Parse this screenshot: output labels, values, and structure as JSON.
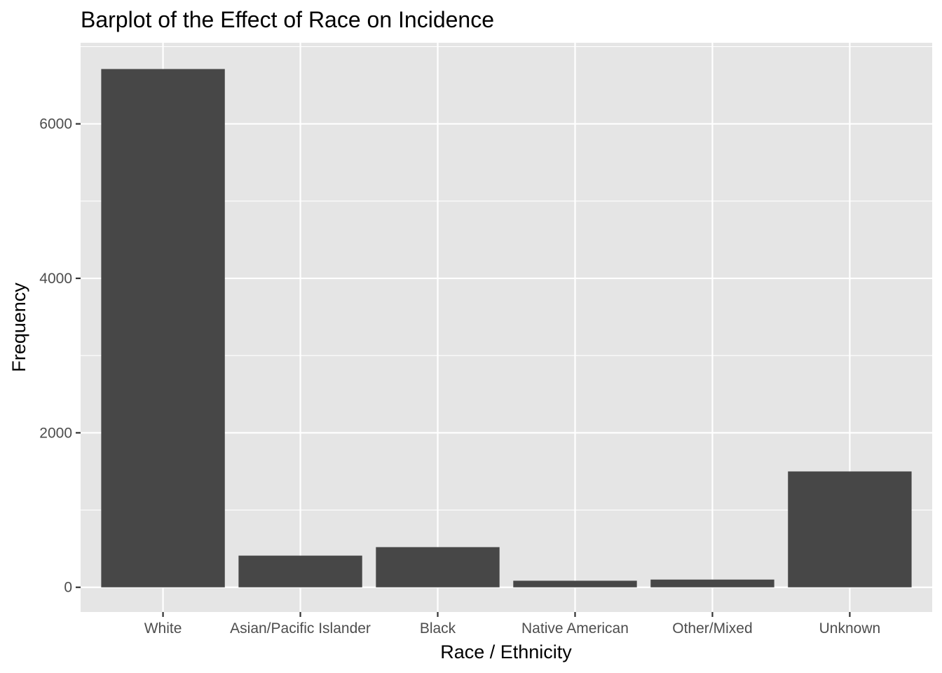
{
  "chart_data": {
    "type": "bar",
    "title": "Barplot of the Effect of Race on Incidence",
    "xlabel": "Race / Ethnicity",
    "ylabel": "Frequency",
    "categories": [
      "White",
      "Asian/Pacific Islander",
      "Black",
      "Native American",
      "Other/Mixed",
      "Unknown"
    ],
    "values": [
      6710,
      410,
      520,
      85,
      100,
      1500
    ],
    "ylim": [
      -320,
      7050
    ],
    "yticks": [
      0,
      2000,
      4000,
      6000
    ],
    "ytick_labels": [
      "0",
      "2000",
      "4000",
      "6000"
    ],
    "grid": true,
    "colors": {
      "panel_background": "#e5e5e5",
      "grid": "#ffffff",
      "bar": "#474747",
      "tick": "#333333"
    }
  }
}
